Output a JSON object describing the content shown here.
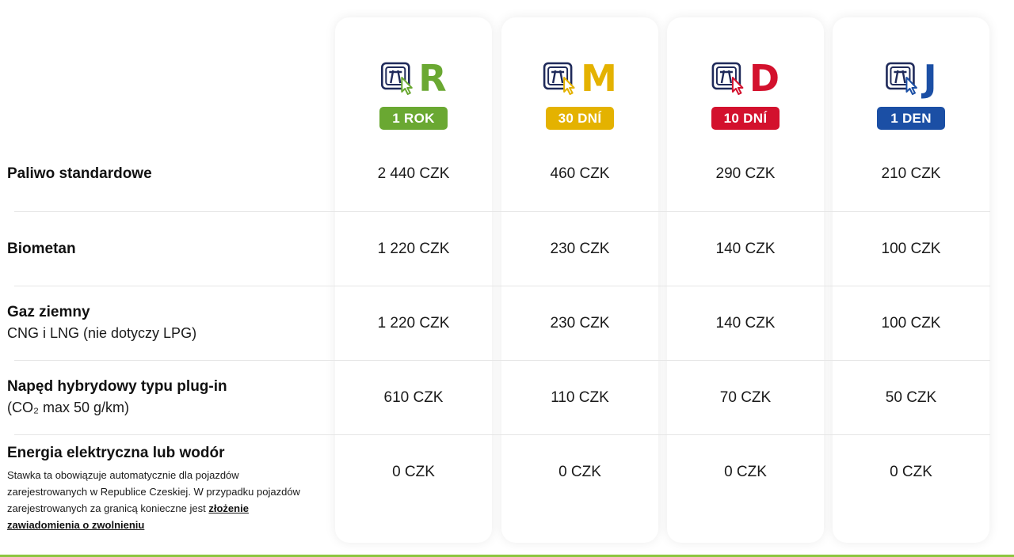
{
  "vignettes": [
    {
      "letter": "R",
      "badge": "1 ROK",
      "color": "#6aa832"
    },
    {
      "letter": "M",
      "badge": "30 DNÍ",
      "color": "#e4b200"
    },
    {
      "letter": "D",
      "badge": "10 DNÍ",
      "color": "#d3112d"
    },
    {
      "letter": "J",
      "badge": "1 DEN",
      "color": "#1b4fa5"
    }
  ],
  "rows": [
    {
      "title": "Paliwo standardowe",
      "prices": [
        "2 440 CZK",
        "460 CZK",
        "290 CZK",
        "210 CZK"
      ]
    },
    {
      "title": "Biometan",
      "prices": [
        "1 220 CZK",
        "230 CZK",
        "140 CZK",
        "100 CZK"
      ]
    },
    {
      "title": "Gaz ziemny",
      "subtitle": "CNG i LNG (nie dotyczy LPG)",
      "prices": [
        "1 220 CZK",
        "230 CZK",
        "140 CZK",
        "100 CZK"
      ]
    },
    {
      "title": "Napęd hybrydowy typu plug-in",
      "subtitle": "(CO₂ max 50 g/km)",
      "prices": [
        "610 CZK",
        "110 CZK",
        "70 CZK",
        "50 CZK"
      ]
    },
    {
      "title": "Energia elektryczna lub wodór",
      "note": "Stawka ta obowiązuje automatycznie dla pojazdów zarejestrowanych w Republice Czeskiej. W przypadku pojazdów zarejestrowanych za granicą konieczne jest",
      "link": "złożenie zawiadomienia o zwolnieniu",
      "prices": [
        "0 CZK",
        "0 CZK",
        "0 CZK",
        "0 CZK"
      ]
    }
  ],
  "colors": {
    "accent_line": "#8cc63f",
    "icon_navy": "#1f2a5a"
  }
}
